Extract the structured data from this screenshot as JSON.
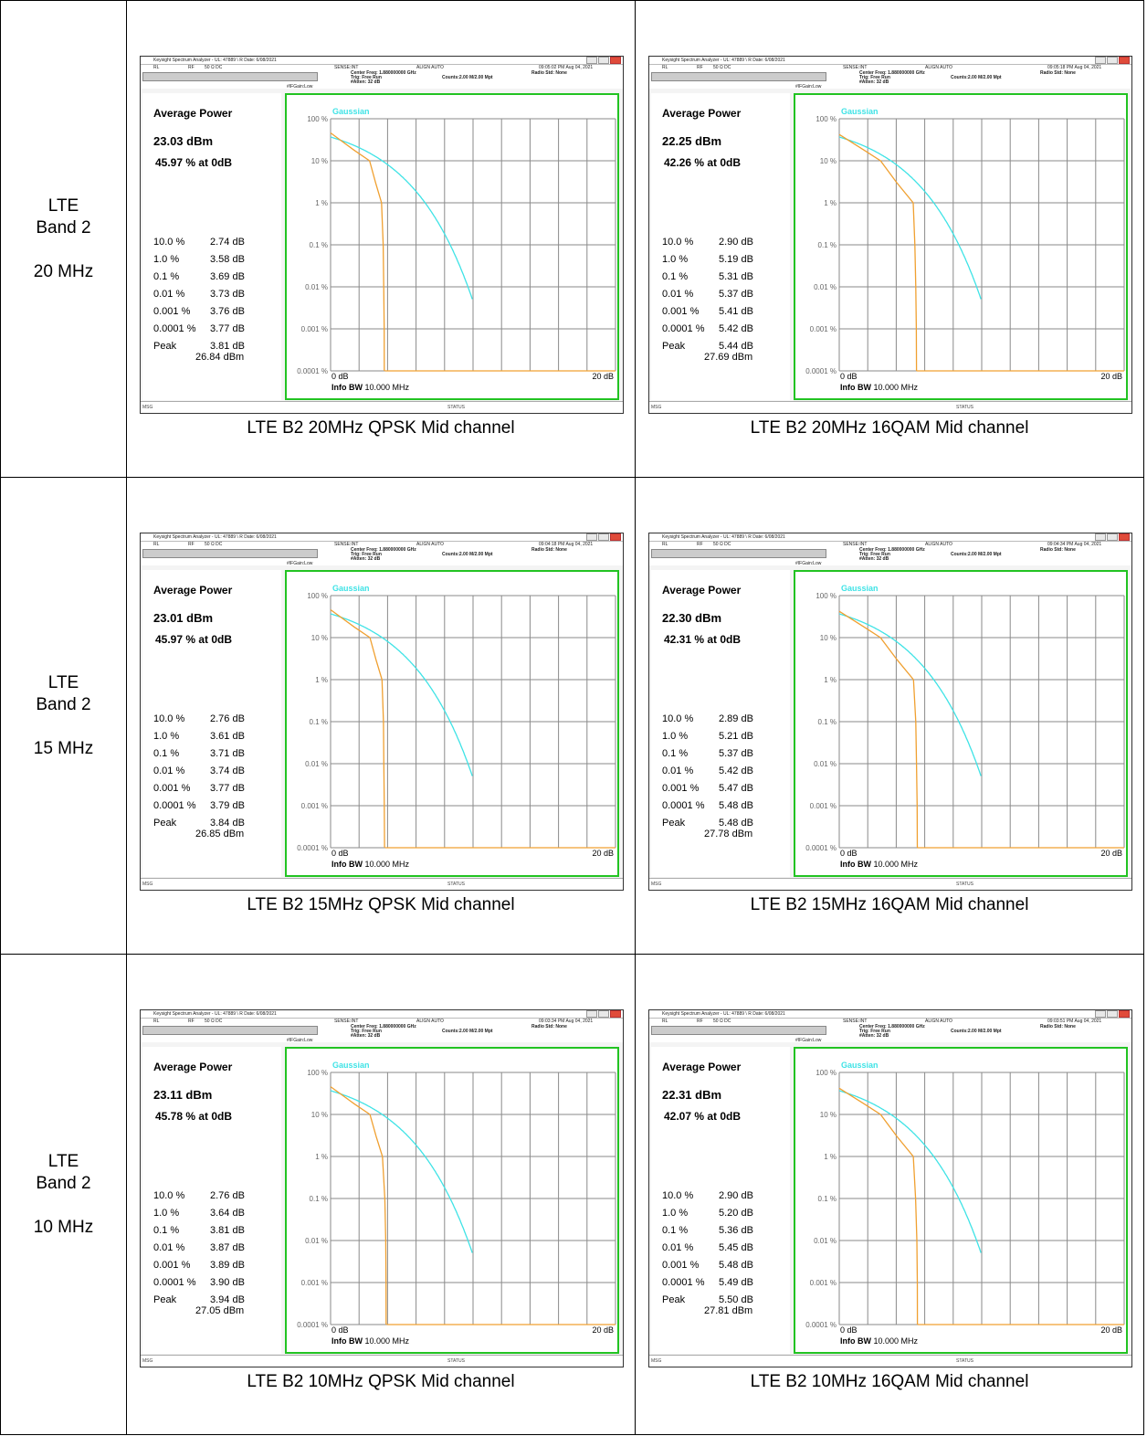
{
  "common": {
    "window_title": "Keysight Spectrum Analyzer - UL: 47889 \\ R Date: 6/08/2021",
    "rl": "RL",
    "rf": "RF",
    "ohm": "50 Ω  DC",
    "sense": "SENSE:INT",
    "align": "ALIGN AUTO",
    "center_freq": "Center Freq: 1.880000000 GHz",
    "trig": "Trig: Free Run",
    "atten": "#Atten: 32 dB",
    "counts": "Counts:2.00 M/2.00 Mpt",
    "radio_std": "Radio Std: None",
    "ifgain": "#IFGain:Low",
    "avg_power_label": "Average Power",
    "peak_label": "Peak",
    "gaussian_label": "Gaussian",
    "y_ticks": [
      "100 %",
      "10 %",
      "1 %",
      "0.1 %",
      "0.01 %",
      "0.001 %",
      "0.0001 %"
    ],
    "x_start": "0 dB",
    "x_end": "20 dB",
    "info_bw_label": "Info BW",
    "info_bw_value": "10.000 MHz",
    "msg": "MSG",
    "status": "STATUS",
    "probabilities": [
      "10.0 %",
      "1.0 %",
      "0.1 %",
      "0.01 %",
      "0.001 %",
      "0.0001 %"
    ],
    "colors": {
      "gaussian": "#3fe3e6",
      "measured": "#f0a030",
      "frame": "#22c322"
    }
  },
  "rows": [
    {
      "label": [
        "LTE",
        "Band 2",
        "20 MHz"
      ]
    },
    {
      "label": [
        "LTE",
        "Band 2",
        "15 MHz"
      ]
    },
    {
      "label": [
        "LTE",
        "Band 2",
        "10 MHz"
      ]
    }
  ],
  "panels": [
    {
      "caption": "LTE B2 20MHz QPSK Mid channel",
      "timestamp": "09:05:02 PM Aug 04, 2021",
      "avg_power": "23.03 dBm",
      "pct": "45.97 % at 0dB",
      "values": [
        "2.74 dB",
        "3.58 dB",
        "3.69 dB",
        "3.73 dB",
        "3.76 dB",
        "3.77 dB"
      ],
      "peak": "3.81 dB",
      "peak_dbm": "26.84 dBm",
      "mod": "QPSK"
    },
    {
      "caption": "LTE B2 20MHz 16QAM Mid channel",
      "timestamp": "09:05:18 PM Aug 04, 2021",
      "avg_power": "22.25 dBm",
      "pct": "42.26 % at 0dB",
      "values": [
        "2.90 dB",
        "5.19 dB",
        "5.31 dB",
        "5.37 dB",
        "5.41 dB",
        "5.42 dB"
      ],
      "peak": "5.44 dB",
      "peak_dbm": "27.69 dBm",
      "mod": "16QAM"
    },
    {
      "caption": "LTE B2 15MHz QPSK Mid channel",
      "timestamp": "09:04:18 PM Aug 04, 2021",
      "avg_power": "23.01 dBm",
      "pct": "45.97 % at 0dB",
      "values": [
        "2.76 dB",
        "3.61 dB",
        "3.71 dB",
        "3.74 dB",
        "3.77 dB",
        "3.79 dB"
      ],
      "peak": "3.84 dB",
      "peak_dbm": "26.85 dBm",
      "mod": "QPSK"
    },
    {
      "caption": "LTE B2 15MHz 16QAM Mid channel",
      "timestamp": "09:04:34 PM Aug 04, 2021",
      "avg_power": "22.30 dBm",
      "pct": "42.31 % at 0dB",
      "values": [
        "2.89 dB",
        "5.21 dB",
        "5.37 dB",
        "5.42 dB",
        "5.47 dB",
        "5.48 dB"
      ],
      "peak": "5.48 dB",
      "peak_dbm": "27.78 dBm",
      "mod": "16QAM"
    },
    {
      "caption": "LTE B2 10MHz QPSK Mid channel",
      "timestamp": "09:03:34 PM Aug 04, 2021",
      "avg_power": "23.11 dBm",
      "pct": "45.78 % at 0dB",
      "values": [
        "2.76 dB",
        "3.64 dB",
        "3.81 dB",
        "3.87 dB",
        "3.89 dB",
        "3.90 dB"
      ],
      "peak": "3.94 dB",
      "peak_dbm": "27.05 dBm",
      "mod": "QPSK"
    },
    {
      "caption": "LTE B2 10MHz 16QAM Mid channel",
      "timestamp": "09:03:51 PM Aug 04, 2021",
      "avg_power": "22.31 dBm",
      "pct": "42.07 % at 0dB",
      "values": [
        "2.90 dB",
        "5.20 dB",
        "5.36 dB",
        "5.45 dB",
        "5.48 dB",
        "5.49 dB"
      ],
      "peak": "5.50 dB",
      "peak_dbm": "27.81 dBm",
      "mod": "16QAM"
    }
  ]
}
